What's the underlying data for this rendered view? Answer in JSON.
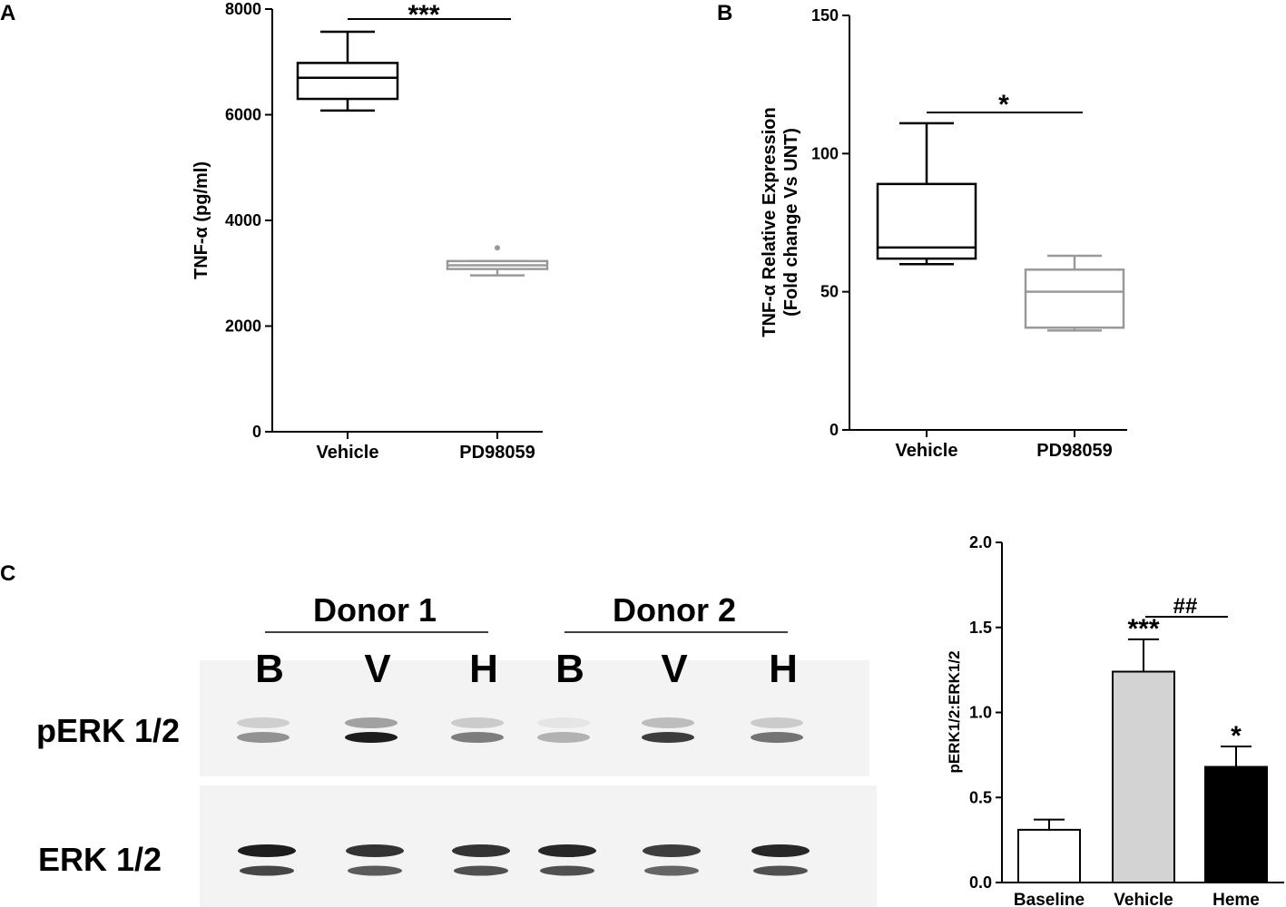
{
  "panels": {
    "a": "A",
    "b": "B",
    "c": "C"
  },
  "chart_data": [
    {
      "type": "box",
      "panel": "A",
      "ylabel": "TNF-α (pg/ml)",
      "ylim": [
        0,
        8000
      ],
      "yticks": [
        0,
        2000,
        4000,
        6000,
        8000
      ],
      "categories": [
        "Vehicle",
        "PD98059"
      ],
      "boxes": [
        {
          "name": "Vehicle",
          "min": 6080,
          "q1": 6300,
          "median": 6700,
          "q3": 6980,
          "max": 7570,
          "outliers": [],
          "color": "#000000"
        },
        {
          "name": "PD98059",
          "min": 2960,
          "q1": 3080,
          "median": 3150,
          "q3": 3230,
          "max": 3230,
          "outliers": [
            3480
          ],
          "color": "#999999"
        }
      ],
      "significance": [
        {
          "from": "Vehicle",
          "to": "PD98059",
          "label": "***"
        }
      ]
    },
    {
      "type": "box",
      "panel": "B",
      "ylabel": "TNF-α Relative Expression",
      "ylabel2": "(Fold change Vs UNT)",
      "ylim": [
        0,
        150
      ],
      "yticks": [
        0,
        50,
        100,
        150
      ],
      "categories": [
        "Vehicle",
        "PD98059"
      ],
      "boxes": [
        {
          "name": "Vehicle",
          "min": 60,
          "q1": 62,
          "median": 66,
          "q3": 89,
          "max": 111,
          "outliers": [],
          "color": "#000000"
        },
        {
          "name": "PD98059",
          "min": 36,
          "q1": 37,
          "median": 50,
          "q3": 58,
          "max": 63,
          "outliers": [],
          "color": "#999999"
        }
      ],
      "significance": [
        {
          "from": "Vehicle",
          "to": "PD98059",
          "label": "*"
        }
      ]
    },
    {
      "type": "bar",
      "panel": "C",
      "ylabel": "pERK1/2:ERK1/2",
      "ylim": [
        0,
        2.0
      ],
      "yticks": [
        "0.0",
        "0.5",
        "1.0",
        "1.5",
        "2.0"
      ],
      "categories": [
        "Baseline",
        "Vehicle",
        "Heme"
      ],
      "values": [
        0.31,
        1.24,
        0.68
      ],
      "errors": [
        0.06,
        0.19,
        0.12
      ],
      "colors": [
        "#ffffff",
        "#d3d3d3",
        "#000000"
      ],
      "bar_labels": [
        "",
        "***",
        "*"
      ],
      "significance": [
        {
          "from": "Vehicle",
          "to": "Heme",
          "label": "##"
        }
      ]
    }
  ],
  "blot": {
    "donors": [
      "Donor 1",
      "Donor 2"
    ],
    "lanes": [
      "B",
      "V",
      "H",
      "B",
      "V",
      "H"
    ],
    "rows": [
      "pERK 1/2",
      "ERK 1/2"
    ],
    "band_intensity": {
      "perk_lower": [
        0.45,
        1.0,
        0.55,
        0.3,
        0.85,
        0.6
      ],
      "perk_upper": [
        0.2,
        0.45,
        0.22,
        0.05,
        0.3,
        0.22
      ],
      "erk_upper": [
        1.0,
        0.9,
        0.9,
        0.95,
        0.85,
        0.95
      ],
      "erk_lower": [
        0.85,
        0.75,
        0.8,
        0.8,
        0.7,
        0.8
      ]
    }
  }
}
